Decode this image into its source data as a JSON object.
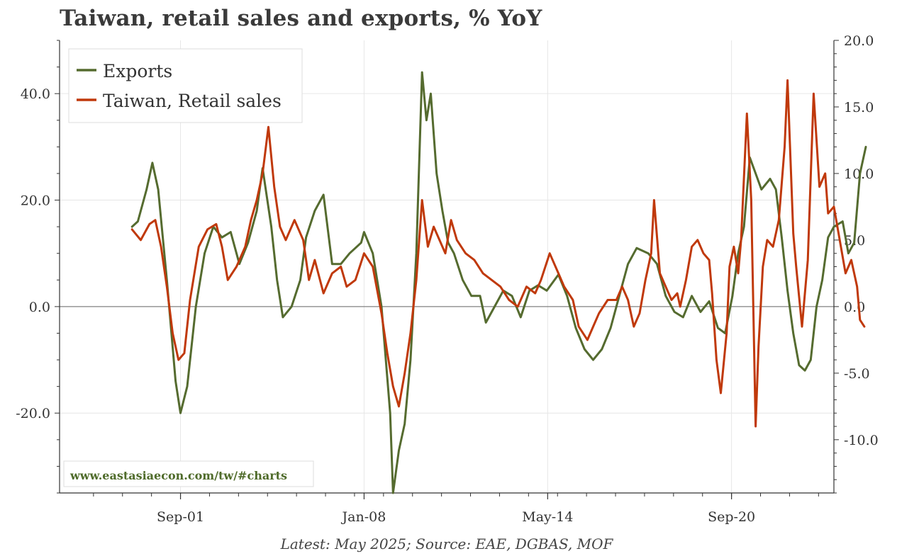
{
  "title": "Taiwan, retail sales and exports, % YoY",
  "footer": "Latest: May 2025; Source: EAE, DGBAS, MOF",
  "watermark": "www.eastasiaecon.com/tw/#charts",
  "chart_data": {
    "type": "line",
    "x_ticks": [
      "Sep-01",
      "Jan-08",
      "May-14",
      "Sep-20"
    ],
    "x_tick_values": [
      2001.67,
      2008.0,
      2014.33,
      2020.67
    ],
    "x_range": [
      1997.5,
      2024.2
    ],
    "left_axis": {
      "range": [
        -35,
        50
      ],
      "ticks": [
        40,
        20,
        0,
        -20
      ],
      "tick_labels": [
        "40.0",
        "20.0",
        "0.0",
        "-20.0"
      ]
    },
    "right_axis": {
      "range": [
        -14,
        20
      ],
      "ticks": [
        20,
        15,
        10,
        5,
        0,
        -5,
        -10
      ],
      "tick_labels": [
        "20.0",
        "15.0",
        "10.0",
        "5.0",
        "0.0",
        "-5.0",
        "-10.0"
      ]
    },
    "legend": [
      "Exports",
      "Taiwan, Retail sales"
    ],
    "legend_position": "top-left",
    "series": [
      {
        "name": "Exports",
        "axis": "left",
        "color": "#556b2f",
        "points": [
          [
            2000.0,
            15
          ],
          [
            2000.2,
            16
          ],
          [
            2000.5,
            22
          ],
          [
            2000.7,
            27
          ],
          [
            2000.9,
            22
          ],
          [
            2001.2,
            5
          ],
          [
            2001.5,
            -14
          ],
          [
            2001.67,
            -20
          ],
          [
            2001.9,
            -15
          ],
          [
            2002.2,
            0
          ],
          [
            2002.5,
            10
          ],
          [
            2002.8,
            15
          ],
          [
            2003.1,
            13
          ],
          [
            2003.4,
            14
          ],
          [
            2003.7,
            8
          ],
          [
            2004.0,
            12
          ],
          [
            2004.3,
            18
          ],
          [
            2004.5,
            26
          ],
          [
            2004.8,
            15
          ],
          [
            2005.0,
            5
          ],
          [
            2005.2,
            -2
          ],
          [
            2005.5,
            0
          ],
          [
            2005.8,
            5
          ],
          [
            2006.0,
            13
          ],
          [
            2006.3,
            18
          ],
          [
            2006.6,
            21
          ],
          [
            2006.9,
            8
          ],
          [
            2007.2,
            8
          ],
          [
            2007.5,
            10
          ],
          [
            2007.9,
            12
          ],
          [
            2008.0,
            14
          ],
          [
            2008.3,
            10
          ],
          [
            2008.6,
            0
          ],
          [
            2008.9,
            -20
          ],
          [
            2009.0,
            -35
          ],
          [
            2009.2,
            -27
          ],
          [
            2009.4,
            -22
          ],
          [
            2009.6,
            -10
          ],
          [
            2009.8,
            10
          ],
          [
            2010.0,
            44
          ],
          [
            2010.15,
            35
          ],
          [
            2010.3,
            40
          ],
          [
            2010.5,
            25
          ],
          [
            2010.7,
            18
          ],
          [
            2010.9,
            12
          ],
          [
            2011.1,
            10
          ],
          [
            2011.4,
            5
          ],
          [
            2011.7,
            2
          ],
          [
            2012.0,
            2
          ],
          [
            2012.2,
            -3
          ],
          [
            2012.5,
            0
          ],
          [
            2012.8,
            3
          ],
          [
            2013.1,
            2
          ],
          [
            2013.4,
            -2
          ],
          [
            2013.7,
            3
          ],
          [
            2014.0,
            4
          ],
          [
            2014.3,
            3
          ],
          [
            2014.7,
            6
          ],
          [
            2015.0,
            2
          ],
          [
            2015.3,
            -4
          ],
          [
            2015.6,
            -8
          ],
          [
            2015.9,
            -10
          ],
          [
            2016.2,
            -8
          ],
          [
            2016.5,
            -4
          ],
          [
            2016.8,
            2
          ],
          [
            2017.1,
            8
          ],
          [
            2017.4,
            11
          ],
          [
            2017.8,
            10
          ],
          [
            2018.1,
            8
          ],
          [
            2018.4,
            2
          ],
          [
            2018.7,
            -1
          ],
          [
            2019.0,
            -2
          ],
          [
            2019.3,
            2
          ],
          [
            2019.6,
            -1
          ],
          [
            2019.9,
            1
          ],
          [
            2020.2,
            -4
          ],
          [
            2020.45,
            -5
          ],
          [
            2020.7,
            2
          ],
          [
            2020.9,
            10
          ],
          [
            2021.1,
            15
          ],
          [
            2021.3,
            28
          ],
          [
            2021.5,
            25
          ],
          [
            2021.7,
            22
          ],
          [
            2022.0,
            24
          ],
          [
            2022.2,
            22
          ],
          [
            2022.4,
            13
          ],
          [
            2022.6,
            3
          ],
          [
            2022.8,
            -5
          ],
          [
            2023.0,
            -11
          ],
          [
            2023.2,
            -12
          ],
          [
            2023.4,
            -10
          ],
          [
            2023.6,
            0
          ],
          [
            2023.8,
            5
          ],
          [
            2024.0,
            13
          ],
          [
            2024.2,
            15
          ],
          [
            2024.5,
            16
          ],
          [
            2024.7,
            10
          ],
          [
            2024.9,
            12
          ],
          [
            2025.1,
            25
          ],
          [
            2025.3,
            30
          ]
        ]
      },
      {
        "name": "Taiwan, Retail sales",
        "axis": "right",
        "color": "#c0390b",
        "points": [
          [
            2000.0,
            5.8
          ],
          [
            2000.3,
            5.0
          ],
          [
            2000.6,
            6.2
          ],
          [
            2000.8,
            6.5
          ],
          [
            2001.0,
            4.5
          ],
          [
            2001.2,
            1.5
          ],
          [
            2001.4,
            -2.0
          ],
          [
            2001.6,
            -4.0
          ],
          [
            2001.8,
            -3.5
          ],
          [
            2002.0,
            0.5
          ],
          [
            2002.3,
            4.5
          ],
          [
            2002.6,
            5.8
          ],
          [
            2002.9,
            6.2
          ],
          [
            2003.1,
            4.5
          ],
          [
            2003.3,
            2.0
          ],
          [
            2003.6,
            3.0
          ],
          [
            2003.9,
            4.5
          ],
          [
            2004.1,
            6.5
          ],
          [
            2004.3,
            8.0
          ],
          [
            2004.5,
            10.0
          ],
          [
            2004.7,
            13.5
          ],
          [
            2004.9,
            9.0
          ],
          [
            2005.1,
            6.0
          ],
          [
            2005.3,
            5.0
          ],
          [
            2005.6,
            6.5
          ],
          [
            2005.9,
            5.0
          ],
          [
            2006.1,
            2.0
          ],
          [
            2006.3,
            3.5
          ],
          [
            2006.6,
            1.0
          ],
          [
            2006.9,
            2.5
          ],
          [
            2007.2,
            3.0
          ],
          [
            2007.4,
            1.5
          ],
          [
            2007.7,
            2.0
          ],
          [
            2008.0,
            4.0
          ],
          [
            2008.3,
            3.0
          ],
          [
            2008.6,
            -0.5
          ],
          [
            2008.8,
            -3.5
          ],
          [
            2009.0,
            -6.0
          ],
          [
            2009.2,
            -7.5
          ],
          [
            2009.4,
            -5.0
          ],
          [
            2009.6,
            -2.0
          ],
          [
            2009.8,
            2.0
          ],
          [
            2010.0,
            8.0
          ],
          [
            2010.2,
            4.5
          ],
          [
            2010.4,
            6.0
          ],
          [
            2010.6,
            5.0
          ],
          [
            2010.8,
            4.0
          ],
          [
            2011.0,
            6.5
          ],
          [
            2011.2,
            5.0
          ],
          [
            2011.5,
            4.0
          ],
          [
            2011.8,
            3.5
          ],
          [
            2012.1,
            2.5
          ],
          [
            2012.4,
            2.0
          ],
          [
            2012.7,
            1.5
          ],
          [
            2013.0,
            0.5
          ],
          [
            2013.3,
            0.0
          ],
          [
            2013.6,
            1.5
          ],
          [
            2013.9,
            1.0
          ],
          [
            2014.1,
            2.0
          ],
          [
            2014.4,
            4.0
          ],
          [
            2014.7,
            2.5
          ],
          [
            2014.9,
            1.5
          ],
          [
            2015.2,
            0.5
          ],
          [
            2015.4,
            -1.5
          ],
          [
            2015.7,
            -2.5
          ],
          [
            2015.9,
            -1.5
          ],
          [
            2016.1,
            -0.5
          ],
          [
            2016.4,
            0.5
          ],
          [
            2016.7,
            0.5
          ],
          [
            2016.9,
            1.5
          ],
          [
            2017.1,
            0.5
          ],
          [
            2017.3,
            -1.5
          ],
          [
            2017.5,
            -0.5
          ],
          [
            2017.7,
            2.0
          ],
          [
            2017.9,
            4.0
          ],
          [
            2018.0,
            8.0
          ],
          [
            2018.2,
            2.5
          ],
          [
            2018.4,
            1.5
          ],
          [
            2018.6,
            0.5
          ],
          [
            2018.8,
            1.0
          ],
          [
            2018.9,
            0.0
          ],
          [
            2019.1,
            2.0
          ],
          [
            2019.3,
            4.5
          ],
          [
            2019.5,
            5.0
          ],
          [
            2019.7,
            4.0
          ],
          [
            2019.9,
            3.5
          ],
          [
            2020.0,
            1.0
          ],
          [
            2020.15,
            -4.0
          ],
          [
            2020.3,
            -6.5
          ],
          [
            2020.5,
            -2.0
          ],
          [
            2020.6,
            3.0
          ],
          [
            2020.75,
            4.5
          ],
          [
            2020.9,
            2.5
          ],
          [
            2021.0,
            5.0
          ],
          [
            2021.2,
            14.5
          ],
          [
            2021.35,
            8.0
          ],
          [
            2021.5,
            -9.0
          ],
          [
            2021.6,
            -3.0
          ],
          [
            2021.75,
            3.0
          ],
          [
            2021.9,
            5.0
          ],
          [
            2022.1,
            4.5
          ],
          [
            2022.3,
            6.5
          ],
          [
            2022.5,
            12.0
          ],
          [
            2022.6,
            17.0
          ],
          [
            2022.8,
            5.5
          ],
          [
            2022.9,
            3.0
          ],
          [
            2023.1,
            -1.5
          ],
          [
            2023.3,
            3.5
          ],
          [
            2023.5,
            16.0
          ],
          [
            2023.7,
            9.0
          ],
          [
            2023.9,
            10.0
          ],
          [
            2024.0,
            7.0
          ],
          [
            2024.2,
            7.5
          ],
          [
            2024.4,
            5.0
          ],
          [
            2024.6,
            2.5
          ],
          [
            2024.8,
            3.5
          ],
          [
            2025.0,
            1.5
          ],
          [
            2025.1,
            -1.0
          ],
          [
            2025.25,
            -1.5
          ]
        ]
      }
    ]
  }
}
